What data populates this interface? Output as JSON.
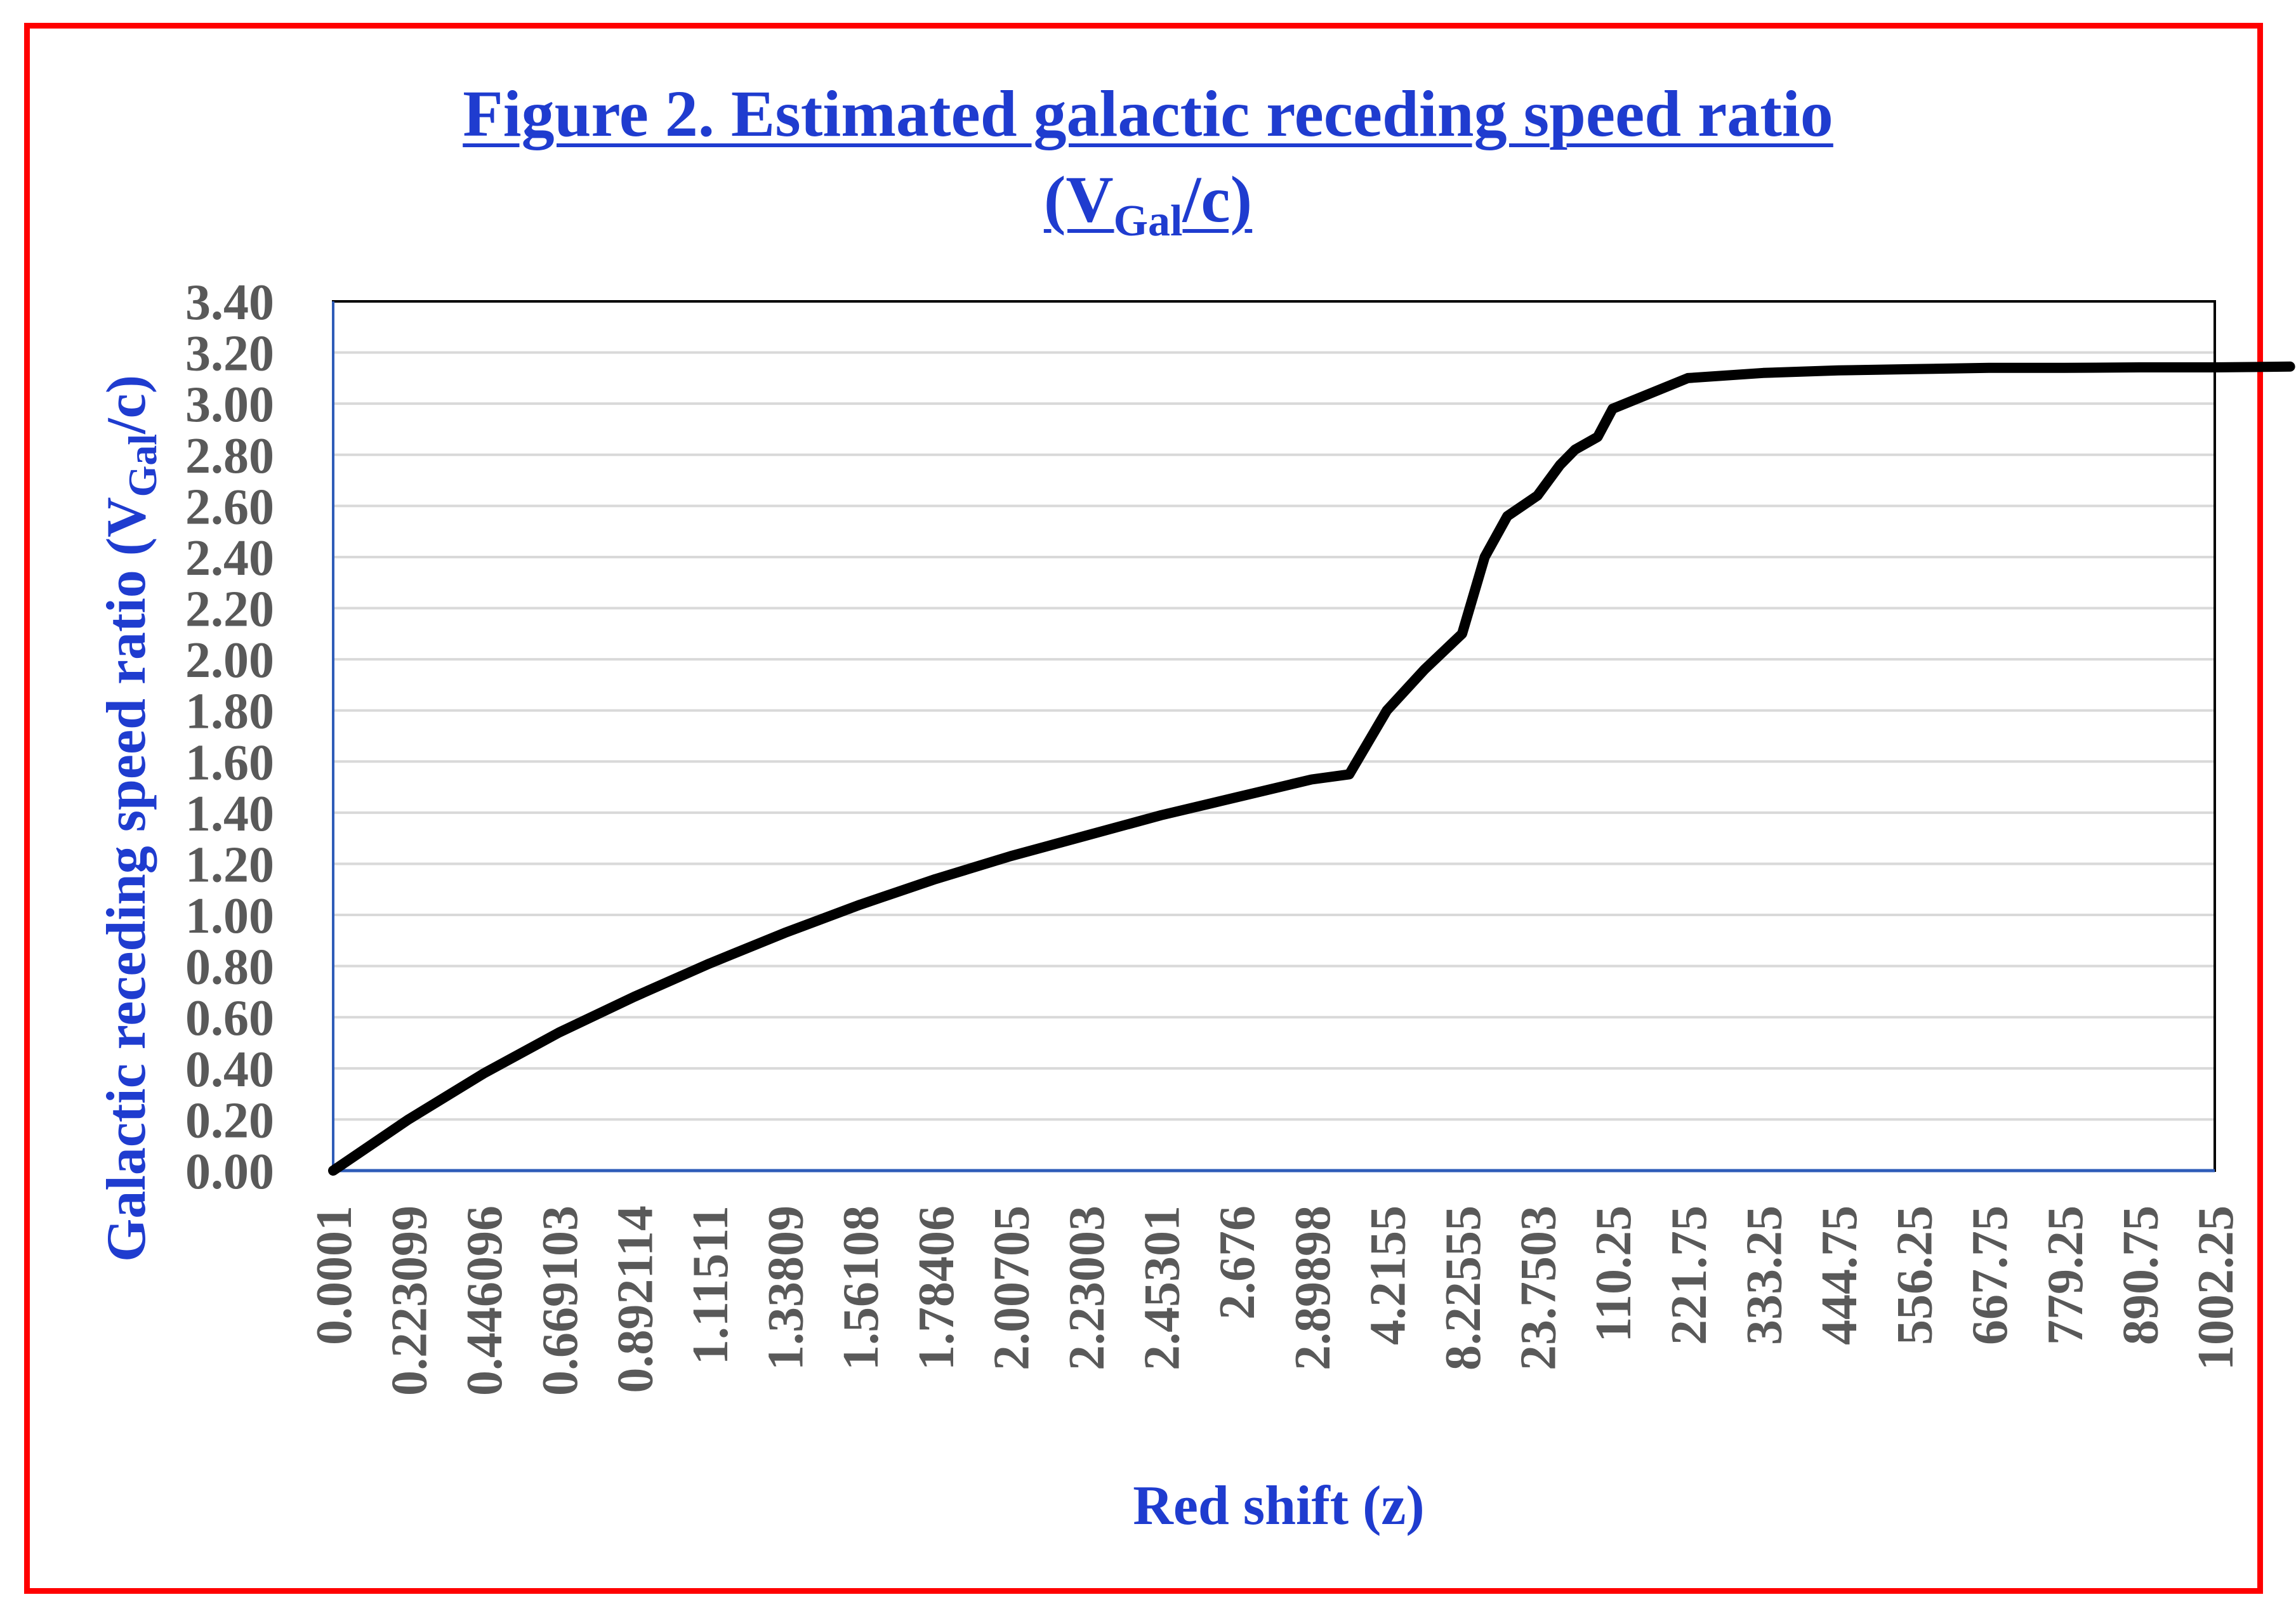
{
  "colors": {
    "frame": "#ff0000",
    "title": "#1f3ccf",
    "axis_title": "#1f3ccf",
    "tick_label": "#595959",
    "gridline": "#d9d9d9",
    "plot_border": "#000000",
    "x_axis_line": "#2e5cb8",
    "series_line": "#000000"
  },
  "chart_data": {
    "type": "line",
    "title_line1": "Figure 2. Estimated galactic receding speed ratio",
    "title_line2_prefix": "(V",
    "title_line2_sub": "Gal",
    "title_line2_suffix": "/c)",
    "xlabel": "Red shift (z)",
    "ylabel_prefix": "Galactic receding speed ratio (V",
    "ylabel_sub": "Gal",
    "ylabel_suffix": "/c)",
    "ylim": [
      0,
      3.4
    ],
    "yticks": [
      "0.00",
      "0.20",
      "0.40",
      "0.60",
      "0.80",
      "1.00",
      "1.20",
      "1.40",
      "1.60",
      "1.80",
      "2.00",
      "2.20",
      "2.40",
      "2.60",
      "2.80",
      "3.00",
      "3.20",
      "3.40"
    ],
    "xticks": [
      "0.0001",
      "0.223099",
      "0.446096",
      "0.669103",
      "0.892114",
      "1.11511",
      "1.33809",
      "1.56108",
      "1.78406",
      "2.00705",
      "2.23003",
      "2.45301",
      "2.676",
      "2.89898",
      "4.2155",
      "8.22555",
      "23.7503",
      "110.25",
      "221.75",
      "333.25",
      "444.75",
      "556.25",
      "667.75",
      "779.25",
      "890.75",
      "1002.25"
    ],
    "grid": true,
    "legend": "none",
    "series": [
      {
        "name": "V_Gal/c",
        "x_category_index": [
          0,
          1,
          2,
          3,
          4,
          5,
          6,
          7,
          8,
          9,
          10,
          11,
          12,
          13,
          13.5,
          14,
          14.5,
          15,
          15.3,
          15.6,
          16,
          16.3,
          16.5,
          16.8,
          17,
          18,
          19,
          20,
          21,
          22,
          23,
          24,
          25,
          26
        ],
        "values": [
          0.0,
          0.2,
          0.38,
          0.54,
          0.68,
          0.81,
          0.93,
          1.04,
          1.14,
          1.23,
          1.31,
          1.39,
          1.46,
          1.53,
          1.55,
          1.8,
          1.96,
          2.1,
          2.4,
          2.56,
          2.64,
          2.76,
          2.82,
          2.87,
          2.98,
          3.1,
          3.12,
          3.13,
          3.135,
          3.14,
          3.14,
          3.142,
          3.142,
          3.145
        ]
      }
    ]
  }
}
